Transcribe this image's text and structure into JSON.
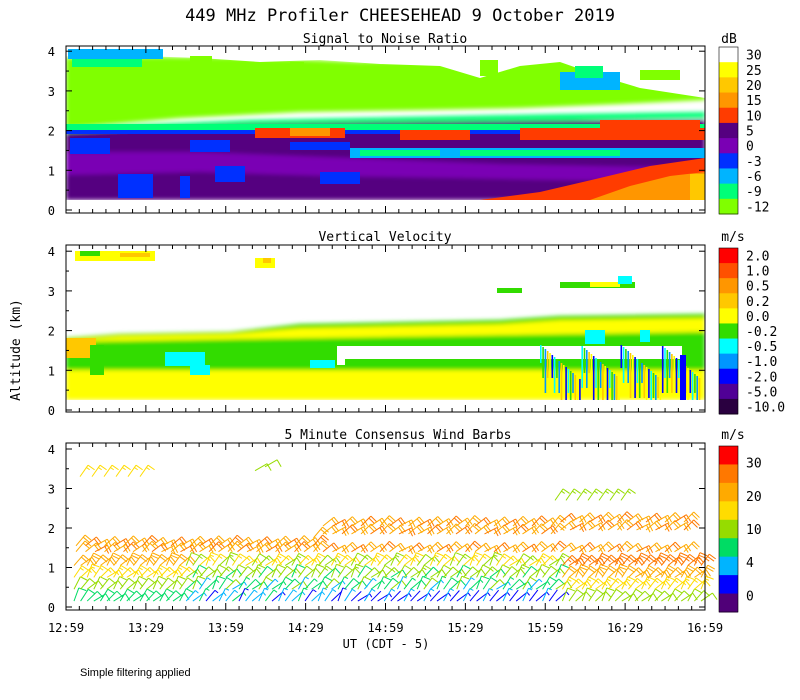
{
  "title": "449 MHz Profiler CHEESEHEAD  9 October 2019",
  "ylabel": "Altitude (km)",
  "xlabel": "UT  (CDT - 5)",
  "footer": "Simple filtering applied",
  "x_ticks": [
    "12:59",
    "13:29",
    "13:59",
    "14:29",
    "14:59",
    "15:29",
    "15:59",
    "16:29",
    "16:59"
  ],
  "y_ticks": [
    "0",
    "1",
    "2",
    "3",
    "4"
  ],
  "chart_data": [
    {
      "type": "heatmap",
      "title": "Signal to Noise Ratio",
      "unit": "dB",
      "xlim": [
        "12:59",
        "16:59"
      ],
      "ylim": [
        0,
        4
      ],
      "colorbar_labels": [
        "30",
        "25",
        "20",
        "15",
        "10",
        "5",
        "0",
        "-3",
        "-6",
        "-9",
        "-12"
      ],
      "colors": [
        "#ffffff",
        "#ffff00",
        "#ffc800",
        "#ff9600",
        "#ff3c00",
        "#550080",
        "#7a00b4",
        "#0030ff",
        "#00b4ff",
        "#00ff78",
        "#80ff00"
      ],
      "description_text": ""
    },
    {
      "type": "heatmap",
      "title": "Vertical Velocity",
      "unit": "m/s",
      "xlim": [
        "12:59",
        "16:59"
      ],
      "ylim": [
        0,
        4
      ],
      "colorbar_labels": [
        "2.0",
        "1.0",
        "0.5",
        "0.2",
        "0.0",
        "-0.2",
        "-0.5",
        "-1.0",
        "-2.0",
        "-5.0",
        "-10.0"
      ],
      "colors": [
        "#ff0000",
        "#ff5000",
        "#ff9600",
        "#ffc800",
        "#ffff00",
        "#32dc00",
        "#00ffff",
        "#0096ff",
        "#0000ff",
        "#500096",
        "#2a0040"
      ]
    },
    {
      "type": "scatter",
      "title": "5 Minute Consensus Wind Barbs",
      "unit": "m/s",
      "xlim": [
        "12:59",
        "16:59"
      ],
      "ylim": [
        0,
        4
      ],
      "colorbar_labels": [
        "30",
        "20",
        "10",
        "4",
        "0"
      ],
      "colors": [
        "#ff0000",
        "#ff7800",
        "#ffaa00",
        "#ffdc00",
        "#96dc00",
        "#00dc64",
        "#00b4ff",
        "#0000ff",
        "#500078"
      ]
    }
  ]
}
